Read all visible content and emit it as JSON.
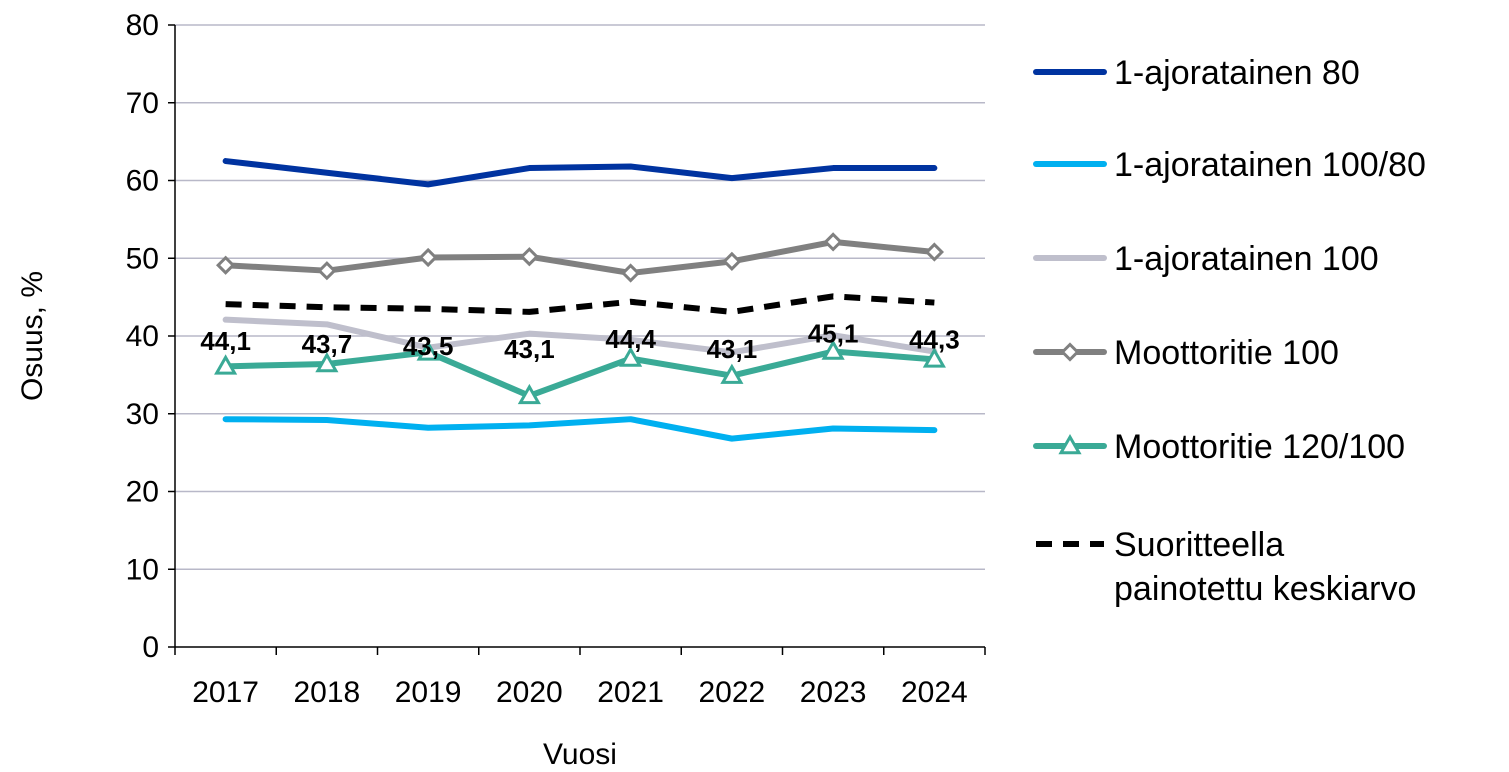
{
  "chart_data": {
    "type": "line",
    "xlabel": "Vuosi",
    "ylabel": "Osuus, %",
    "ylim": [
      0,
      80
    ],
    "yticks": [
      0,
      10,
      20,
      30,
      40,
      50,
      60,
      70,
      80
    ],
    "categories": [
      "2017",
      "2018",
      "2019",
      "2020",
      "2021",
      "2022",
      "2023",
      "2024"
    ],
    "grid": "horizontal",
    "legend_position": "right",
    "series": [
      {
        "name": "1-ajoratainen 80",
        "color": "#0033a0",
        "style": "solid",
        "marker": "none",
        "values": [
          62.5,
          61.0,
          59.5,
          61.6,
          61.8,
          60.3,
          61.6,
          61.6
        ]
      },
      {
        "name": "1-ajoratainen 100/80",
        "color": "#00b0f0",
        "style": "solid",
        "marker": "none",
        "values": [
          29.3,
          29.2,
          28.2,
          28.5,
          29.3,
          26.8,
          28.1,
          27.9
        ]
      },
      {
        "name": "1-ajoratainen 100",
        "color": "#bfbfcc",
        "style": "solid",
        "marker": "none",
        "values": [
          42.1,
          41.5,
          38.5,
          40.3,
          39.5,
          37.9,
          40.1,
          38.0
        ]
      },
      {
        "name": "Moottoritie 100",
        "color": "#808080",
        "style": "solid",
        "marker": "diamond",
        "values": [
          49.1,
          48.4,
          50.1,
          50.2,
          48.1,
          49.6,
          52.1,
          50.8
        ]
      },
      {
        "name": "Moottoritie 120/100",
        "color": "#3aaa96",
        "style": "solid",
        "marker": "triangle",
        "values": [
          36.1,
          36.4,
          37.9,
          32.3,
          37.1,
          34.9,
          38.0,
          37.0
        ]
      },
      {
        "name": "Suoritteella painotettu keskiarvo",
        "legend_lines": [
          "Suoritteella",
          "painotettu keskiarvo"
        ],
        "color": "#000000",
        "style": "dashed",
        "marker": "none",
        "values": [
          44.1,
          43.7,
          43.5,
          43.1,
          44.4,
          43.1,
          45.1,
          44.3
        ],
        "data_labels": [
          "44,1",
          "43,7",
          "43,5",
          "43,1",
          "44,4",
          "43,1",
          "45,1",
          "44,3"
        ]
      }
    ]
  }
}
